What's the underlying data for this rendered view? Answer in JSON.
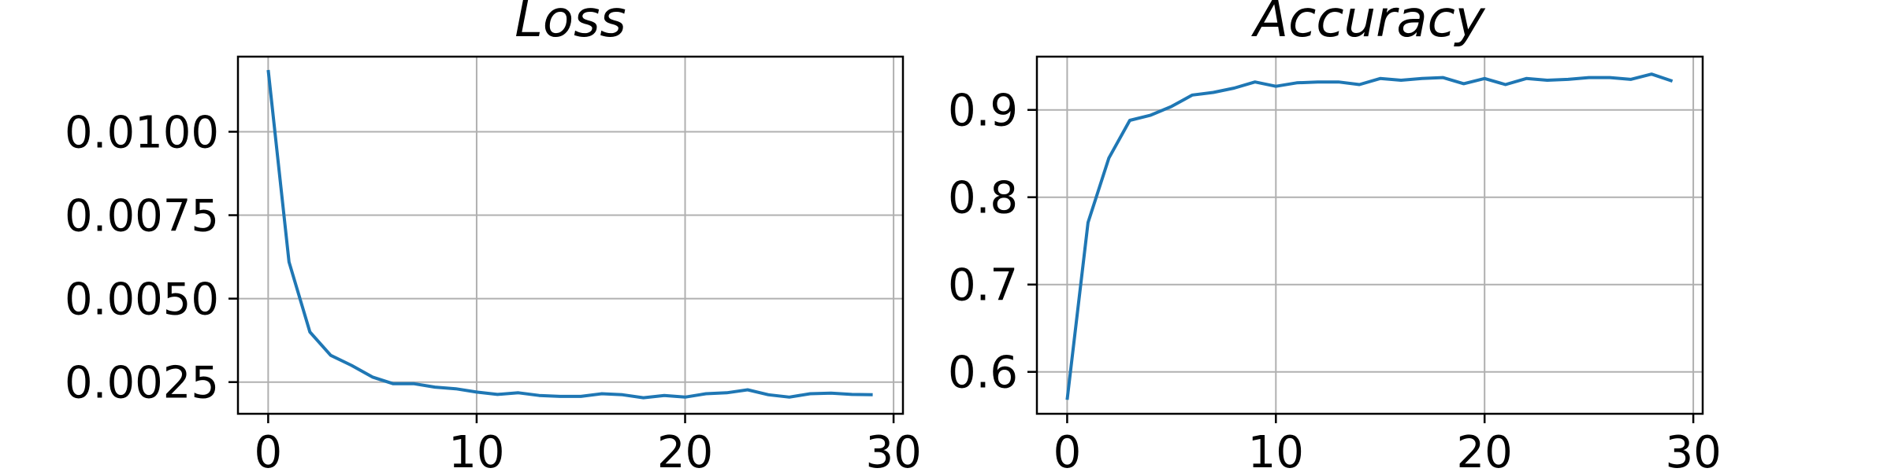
{
  "chart_data": [
    {
      "type": "line",
      "title": "Loss",
      "xlabel": "",
      "ylabel": "",
      "xlim": [
        -1.45,
        30.45
      ],
      "ylim": [
        0.00155,
        0.01225
      ],
      "xticks": [
        0,
        10,
        20,
        30
      ],
      "xtick_labels": [
        "0",
        "10",
        "20",
        "30"
      ],
      "yticks": [
        0.0025,
        0.005,
        0.0075,
        0.01
      ],
      "ytick_labels": [
        "0.0025",
        "0.0050",
        "0.0075",
        "0.0100"
      ],
      "grid": true,
      "legend": "none",
      "color": "#1f77b4",
      "series": [
        {
          "x": [
            0,
            1,
            2,
            3,
            4,
            5,
            6,
            7,
            8,
            9,
            10,
            11,
            12,
            13,
            14,
            15,
            16,
            17,
            18,
            19,
            20,
            21,
            22,
            23,
            24,
            25,
            26,
            27,
            28,
            29
          ],
          "y": [
            0.01185,
            0.0061,
            0.004,
            0.0033,
            0.003,
            0.00265,
            0.00245,
            0.00245,
            0.00235,
            0.0023,
            0.0022,
            0.00213,
            0.00218,
            0.0021,
            0.00207,
            0.00207,
            0.00215,
            0.00212,
            0.00203,
            0.0021,
            0.00205,
            0.00215,
            0.00218,
            0.00227,
            0.00212,
            0.00205,
            0.00215,
            0.00217,
            0.00213,
            0.00212
          ]
        }
      ]
    },
    {
      "type": "line",
      "title": "Accuracy",
      "xlabel": "",
      "ylabel": "",
      "xlim": [
        -1.45,
        30.45
      ],
      "ylim": [
        0.552,
        0.961
      ],
      "xticks": [
        0,
        10,
        20,
        30
      ],
      "xtick_labels": [
        "0",
        "10",
        "20",
        "30"
      ],
      "yticks": [
        0.6,
        0.7,
        0.8,
        0.9
      ],
      "ytick_labels": [
        "0.6",
        "0.7",
        "0.8",
        "0.9"
      ],
      "grid": true,
      "legend": "none",
      "color": "#1f77b4",
      "series": [
        {
          "x": [
            0,
            1,
            2,
            3,
            4,
            5,
            6,
            7,
            8,
            9,
            10,
            11,
            12,
            13,
            14,
            15,
            16,
            17,
            18,
            19,
            20,
            21,
            22,
            23,
            24,
            25,
            26,
            27,
            28,
            29
          ],
          "y": [
            0.568,
            0.771,
            0.845,
            0.888,
            0.894,
            0.904,
            0.917,
            0.92,
            0.925,
            0.932,
            0.927,
            0.931,
            0.932,
            0.932,
            0.929,
            0.936,
            0.934,
            0.936,
            0.937,
            0.93,
            0.936,
            0.929,
            0.936,
            0.934,
            0.935,
            0.937,
            0.937,
            0.935,
            0.941,
            0.933
          ]
        }
      ]
    }
  ]
}
